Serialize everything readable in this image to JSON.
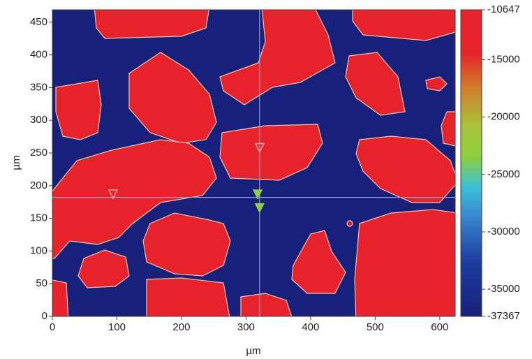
{
  "chart_data": {
    "type": "image-map",
    "xlabel": "µm",
    "ylabel": "µm",
    "xlim": [
      0,
      624
    ],
    "ylim": [
      0,
      469
    ],
    "xticks": [
      0,
      100,
      200,
      300,
      400,
      500,
      600
    ],
    "yticks": [
      0,
      50,
      100,
      150,
      200,
      250,
      300,
      350,
      400,
      450
    ],
    "clim": [
      -37367,
      -10647
    ],
    "cticks": [
      -37367,
      -35000,
      -30000,
      -25000,
      -20000,
      -15000,
      -10647
    ],
    "crosshair": {
      "x": 321,
      "y": 182,
      "color": "#8fa2d8"
    },
    "markers": [
      {
        "x": 94,
        "y": 187,
        "color": "#f0a8a0",
        "filled": false
      },
      {
        "x": 321,
        "y": 258,
        "color": "#f0a8a0",
        "filled": false
      },
      {
        "x": 318,
        "y": 187,
        "color": "#8ccf3c",
        "filled": true
      },
      {
        "x": 321,
        "y": 166,
        "color": "#8ccf3c",
        "filled": true
      }
    ]
  }
}
